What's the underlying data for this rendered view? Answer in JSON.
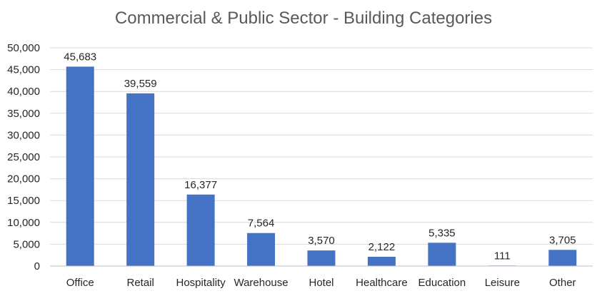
{
  "chart_data": {
    "type": "bar",
    "title": "Commercial & Public Sector - Building Categories",
    "xlabel": "",
    "ylabel": "",
    "categories": [
      "Office",
      "Retail",
      "Hospitality",
      "Warehouse",
      "Hotel",
      "Healthcare",
      "Education",
      "Leisure",
      "Other"
    ],
    "values": [
      45683,
      39559,
      16377,
      7564,
      3570,
      2122,
      5335,
      111,
      3705
    ],
    "data_labels": [
      "45,683",
      "39,559",
      "16,377",
      "7,564",
      "3,570",
      "2,122",
      "5,335",
      "111",
      "3,705"
    ],
    "y_ticks": [
      0,
      5000,
      10000,
      15000,
      20000,
      25000,
      30000,
      35000,
      40000,
      45000,
      50000
    ],
    "y_tick_labels": [
      "0",
      "5,000",
      "10,000",
      "15,000",
      "20,000",
      "25,000",
      "30,000",
      "35,000",
      "40,000",
      "45,000",
      "50,000"
    ],
    "ylim": [
      0,
      50000
    ],
    "grid": true,
    "legend": "none",
    "bar_color": "#4472c4"
  }
}
